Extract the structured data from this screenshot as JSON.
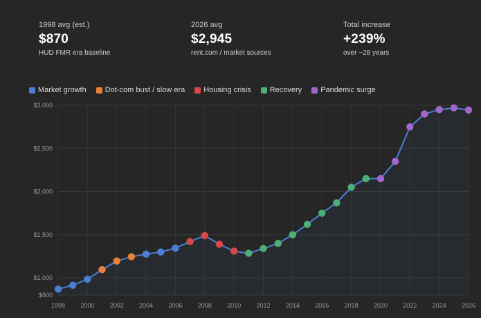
{
  "stats": [
    {
      "label": "1998 avg (est.)",
      "value": "$870",
      "sub": "HUD FMR era baseline"
    },
    {
      "label": "2026 avg",
      "value": "$2,945",
      "sub": "rent.com / market sources"
    },
    {
      "label": "Total increase",
      "value": "+239%",
      "sub": "over ~28 years"
    }
  ],
  "chart_data": {
    "type": "line",
    "title": "",
    "xlabel": "",
    "ylabel": "",
    "xlim": [
      1998,
      2026
    ],
    "ylim": [
      800,
      3000
    ],
    "y_ticks": [
      800,
      1000,
      1500,
      2000,
      2500,
      3000
    ],
    "y_tick_labels": [
      "$800",
      "$1,000",
      "$1,500",
      "$2,000",
      "$2,500",
      "$3,000"
    ],
    "x_ticks": [
      "1998",
      "2000",
      "2002",
      "2004",
      "2006",
      "2008",
      "2010",
      "2012",
      "2014",
      "2016",
      "2018",
      "2020",
      "2022",
      "2024",
      "2026"
    ],
    "grid": true,
    "legend_position": "top-left",
    "line_color": "#4a7fd4",
    "categories": [
      {
        "key": "growth",
        "name": "Market growth",
        "color": "#4a7fd4"
      },
      {
        "key": "dotcom",
        "name": "Dot-com bust / slow era",
        "color": "#e8823a"
      },
      {
        "key": "housing",
        "name": "Housing crisis",
        "color": "#d94848"
      },
      {
        "key": "recovery",
        "name": "Recovery",
        "color": "#4caf75"
      },
      {
        "key": "pandemic",
        "name": "Pandemic surge",
        "color": "#a366cc"
      }
    ],
    "points": [
      {
        "x": 1998,
        "y": 870,
        "cat": "growth"
      },
      {
        "x": 1999,
        "y": 915,
        "cat": "growth"
      },
      {
        "x": 2000,
        "y": 985,
        "cat": "growth"
      },
      {
        "x": 2001,
        "y": 1095,
        "cat": "dotcom"
      },
      {
        "x": 2002,
        "y": 1195,
        "cat": "dotcom"
      },
      {
        "x": 2003,
        "y": 1245,
        "cat": "dotcom"
      },
      {
        "x": 2004,
        "y": 1275,
        "cat": "growth"
      },
      {
        "x": 2005,
        "y": 1300,
        "cat": "growth"
      },
      {
        "x": 2006,
        "y": 1345,
        "cat": "growth"
      },
      {
        "x": 2007,
        "y": 1420,
        "cat": "housing"
      },
      {
        "x": 2008,
        "y": 1490,
        "cat": "housing"
      },
      {
        "x": 2009,
        "y": 1390,
        "cat": "housing"
      },
      {
        "x": 2010,
        "y": 1310,
        "cat": "housing"
      },
      {
        "x": 2011,
        "y": 1285,
        "cat": "recovery"
      },
      {
        "x": 2012,
        "y": 1340,
        "cat": "recovery"
      },
      {
        "x": 2013,
        "y": 1400,
        "cat": "recovery"
      },
      {
        "x": 2014,
        "y": 1500,
        "cat": "recovery"
      },
      {
        "x": 2015,
        "y": 1620,
        "cat": "recovery"
      },
      {
        "x": 2016,
        "y": 1750,
        "cat": "recovery"
      },
      {
        "x": 2017,
        "y": 1870,
        "cat": "recovery"
      },
      {
        "x": 2018,
        "y": 2050,
        "cat": "recovery"
      },
      {
        "x": 2019,
        "y": 2150,
        "cat": "recovery"
      },
      {
        "x": 2020,
        "y": 2150,
        "cat": "pandemic"
      },
      {
        "x": 2021,
        "y": 2350,
        "cat": "pandemic"
      },
      {
        "x": 2022,
        "y": 2750,
        "cat": "pandemic"
      },
      {
        "x": 2023,
        "y": 2900,
        "cat": "pandemic"
      },
      {
        "x": 2024,
        "y": 2950,
        "cat": "pandemic"
      },
      {
        "x": 2025,
        "y": 2970,
        "cat": "pandemic"
      },
      {
        "x": 2026,
        "y": 2945,
        "cat": "pandemic"
      }
    ]
  }
}
